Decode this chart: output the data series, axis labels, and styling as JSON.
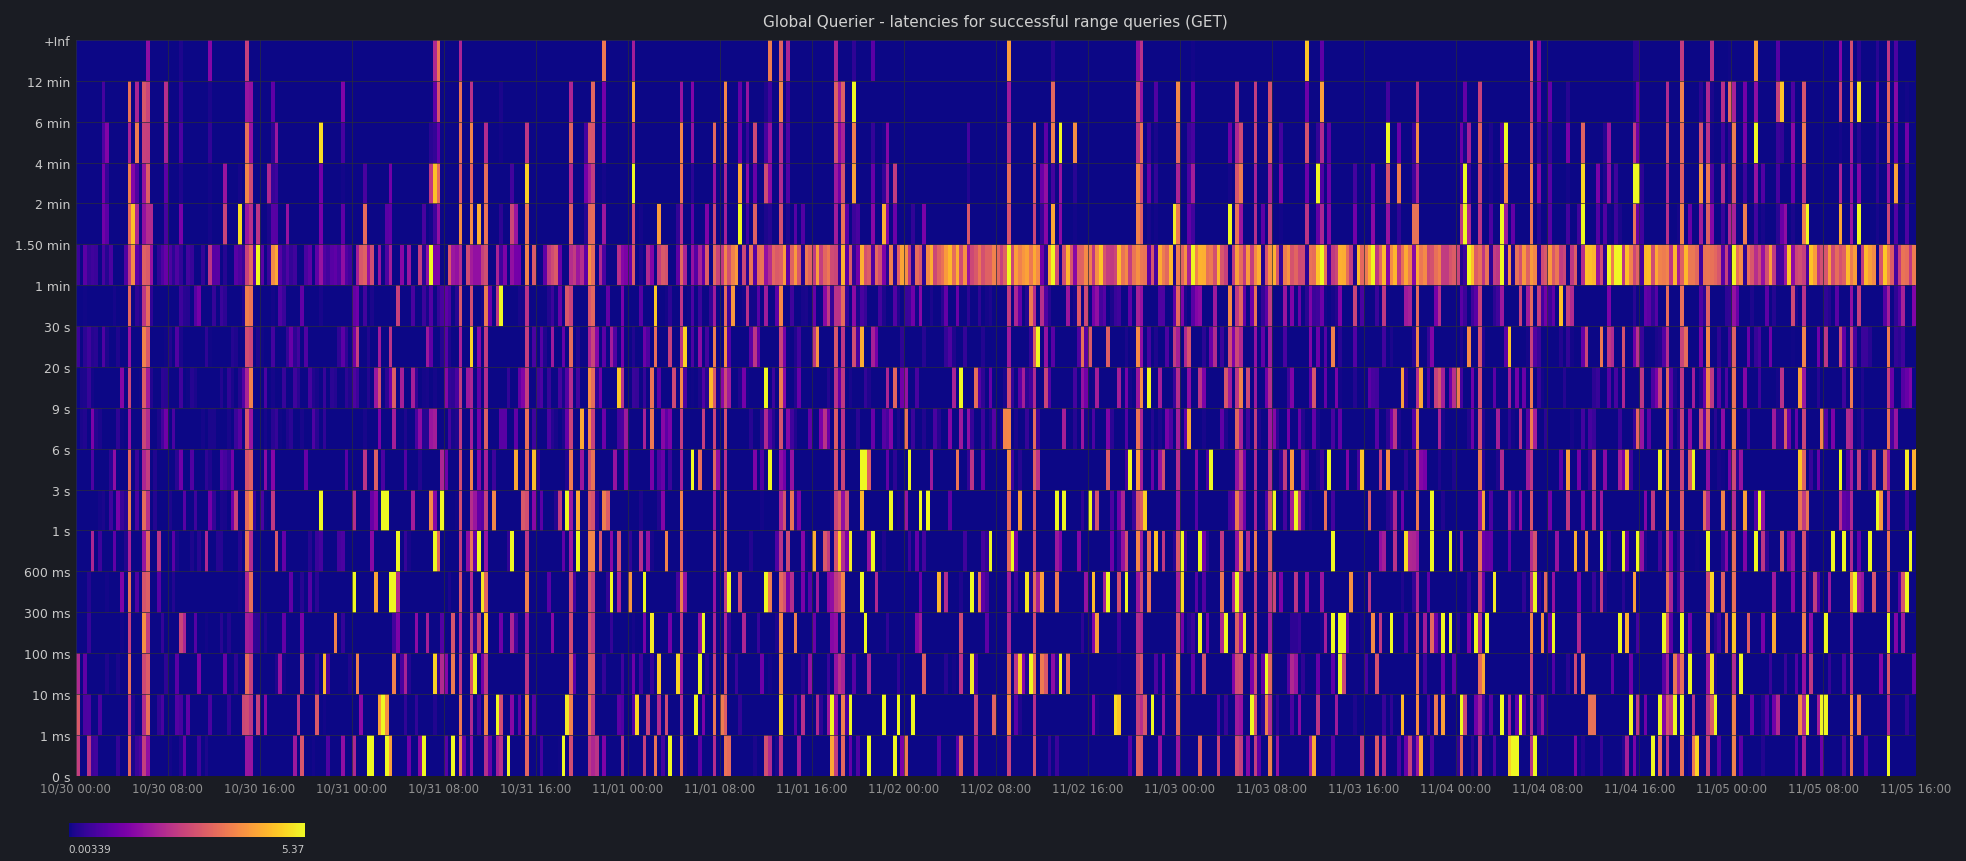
{
  "title": "Global Querier - latencies for successful range queries (GET)",
  "background_color": "#1a1c23",
  "plot_bg_color": "#1c1e27",
  "grid_color": "#2a2d3a",
  "text_color": "#c8c8c8",
  "title_color": "#d0d0d0",
  "xlabel_color": "#909090",
  "colormap": "plasma",
  "colorbar_min": 0.00339,
  "colorbar_max": 5.37,
  "ytick_labels": [
    "+Inf",
    "12 min",
    "6 min",
    "4 min",
    "2 min",
    "1.50 min",
    "1 min",
    "30 s",
    "20 s",
    "9 s",
    "6 s",
    "3 s",
    "1 s",
    "600 ms",
    "300 ms",
    "100 ms",
    "10 ms",
    "1 ms",
    "0 s"
  ],
  "xtick_labels": [
    "10/30 00:00",
    "10/30 08:00",
    "10/30 16:00",
    "10/31 00:00",
    "10/31 08:00",
    "10/31 16:00",
    "11/01 00:00",
    "11/01 08:00",
    "11/01 16:00",
    "11/02 00:00",
    "11/02 08:00",
    "11/02 16:00",
    "11/03 00:00",
    "11/03 08:00",
    "11/03 16:00",
    "11/04 00:00",
    "11/04 08:00",
    "11/04 16:00",
    "11/05 00:00",
    "11/05 08:00",
    "11/05 16:00"
  ],
  "figsize": [
    19.66,
    8.62
  ],
  "dpi": 100,
  "n_time_bins": 500,
  "n_lat_bins": 18
}
